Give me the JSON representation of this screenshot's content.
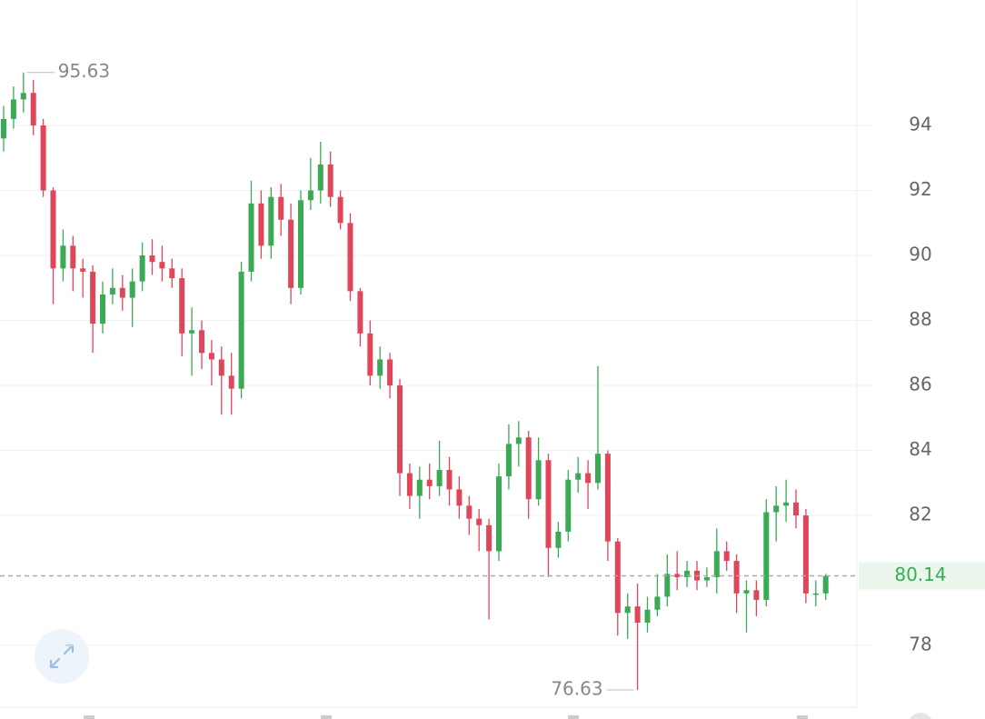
{
  "chart_data": {
    "type": "candlestick",
    "open": [
      93.6,
      94.2,
      94.8,
      95.0,
      94.0,
      92.0,
      89.6,
      90.3,
      89.6,
      89.5,
      87.9,
      88.8,
      89.0,
      88.7,
      89.2,
      90.0,
      89.8,
      89.6,
      89.3,
      87.6,
      87.7,
      87.0,
      86.8,
      86.3,
      85.9,
      89.5,
      91.6,
      90.3,
      91.8,
      91.1,
      89.0,
      91.7,
      92.0,
      92.8,
      91.8,
      91.0,
      88.9,
      87.6,
      86.3,
      86.8,
      86.0,
      83.3,
      82.6,
      83.1,
      82.9,
      83.4,
      82.8,
      82.3,
      81.9,
      81.7,
      80.9,
      83.2,
      84.2,
      84.4,
      82.5,
      83.7,
      81.0,
      81.5,
      83.1,
      83.3,
      83.0,
      83.9,
      81.2,
      79.0,
      79.2,
      78.7,
      79.1,
      79.5,
      80.2,
      80.1,
      80.3,
      80.0,
      80.1,
      80.9,
      80.6,
      79.6,
      79.7,
      79.4,
      82.1,
      82.3,
      82.4,
      82.0,
      79.6,
      79.6
    ],
    "high": [
      94.6,
      95.2,
      95.63,
      95.4,
      94.2,
      92.1,
      90.8,
      90.6,
      89.9,
      89.7,
      89.2,
      89.6,
      89.4,
      89.6,
      90.4,
      90.5,
      90.3,
      89.9,
      89.6,
      88.4,
      88.0,
      87.4,
      87.2,
      87.0,
      89.8,
      92.3,
      92.0,
      92.1,
      92.2,
      91.6,
      92.0,
      93.0,
      93.5,
      93.2,
      92.0,
      91.3,
      89.0,
      88.0,
      87.2,
      87.0,
      86.2,
      83.6,
      83.5,
      83.6,
      84.3,
      83.8,
      83.2,
      82.6,
      82.2,
      81.9,
      83.6,
      84.8,
      84.9,
      84.6,
      84.4,
      83.9,
      81.8,
      83.4,
      83.8,
      83.7,
      86.6,
      84.0,
      81.3,
      79.6,
      79.9,
      79.5,
      80.2,
      80.8,
      80.9,
      80.6,
      80.6,
      80.4,
      81.6,
      81.2,
      80.8,
      80.0,
      80.0,
      82.5,
      82.9,
      83.1,
      82.8,
      82.2,
      80.0,
      80.2
    ],
    "low": [
      93.2,
      93.9,
      94.4,
      93.7,
      91.8,
      88.5,
      89.2,
      88.9,
      88.7,
      87.0,
      87.6,
      88.5,
      88.3,
      87.8,
      88.9,
      89.4,
      89.2,
      89.0,
      86.9,
      86.3,
      86.5,
      86.0,
      85.1,
      85.1,
      85.6,
      89.2,
      89.9,
      89.9,
      90.6,
      88.5,
      88.8,
      91.4,
      91.6,
      91.5,
      90.8,
      88.6,
      87.2,
      86.0,
      85.9,
      85.6,
      82.6,
      82.2,
      81.9,
      82.5,
      82.6,
      82.3,
      81.9,
      81.4,
      80.9,
      78.8,
      80.6,
      82.8,
      83.5,
      81.9,
      82.3,
      80.1,
      80.7,
      81.2,
      82.7,
      82.2,
      82.8,
      80.6,
      78.3,
      78.2,
      76.63,
      78.4,
      78.9,
      79.2,
      79.7,
      79.8,
      79.7,
      79.8,
      79.6,
      80.3,
      79.0,
      78.4,
      78.9,
      79.2,
      81.2,
      81.8,
      81.6,
      79.3,
      79.2,
      79.4
    ],
    "close": [
      94.2,
      94.8,
      95.0,
      94.0,
      92.0,
      89.6,
      90.3,
      89.6,
      89.5,
      87.9,
      88.8,
      89.0,
      88.7,
      89.2,
      90.0,
      89.8,
      89.6,
      89.3,
      87.6,
      87.7,
      87.0,
      86.8,
      86.3,
      85.9,
      89.5,
      91.6,
      90.3,
      91.8,
      91.1,
      89.0,
      91.7,
      92.0,
      92.8,
      91.8,
      91.0,
      88.9,
      87.6,
      86.3,
      86.8,
      86.0,
      83.3,
      82.6,
      83.1,
      82.9,
      83.4,
      82.8,
      82.3,
      81.9,
      81.7,
      80.9,
      83.2,
      84.2,
      84.4,
      82.5,
      83.7,
      81.0,
      81.5,
      83.1,
      83.3,
      83.0,
      83.9,
      81.2,
      79.0,
      79.2,
      78.7,
      79.1,
      79.5,
      80.2,
      80.1,
      80.3,
      80.0,
      80.1,
      80.9,
      80.6,
      79.6,
      79.7,
      79.4,
      82.1,
      82.3,
      82.4,
      82.0,
      79.6,
      79.6,
      80.14
    ],
    "up_color": "#3aaa55",
    "down_color": "#e0465a",
    "ylim": [
      76.1,
      97.86
    ],
    "yticks": [
      78,
      82,
      84,
      86,
      88,
      90,
      92,
      94
    ],
    "grid": true,
    "high_marker": 95.63,
    "low_marker": 76.63,
    "last_price": 80.14
  }
}
